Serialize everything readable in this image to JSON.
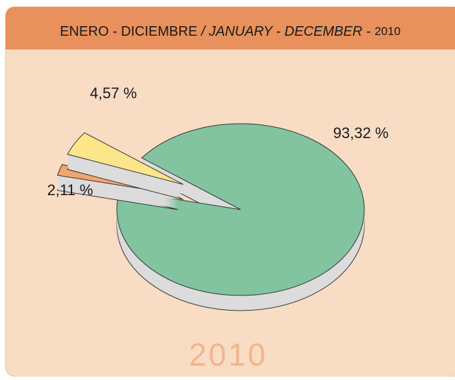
{
  "chart_data": {
    "type": "pie",
    "title_parts": [
      "ENERO - DICIEMBRE",
      "/ JANUARY - DECEMBER -",
      "2010"
    ],
    "watermark": "2010",
    "categories": [
      null,
      null,
      null
    ],
    "values": [
      93.32,
      2.11,
      4.57
    ],
    "value_labels": [
      "93,32 %",
      "2,11 %",
      "4,57 %"
    ],
    "colors": [
      "#82c4a0",
      "#f4a46c",
      "#fde68a"
    ]
  }
}
